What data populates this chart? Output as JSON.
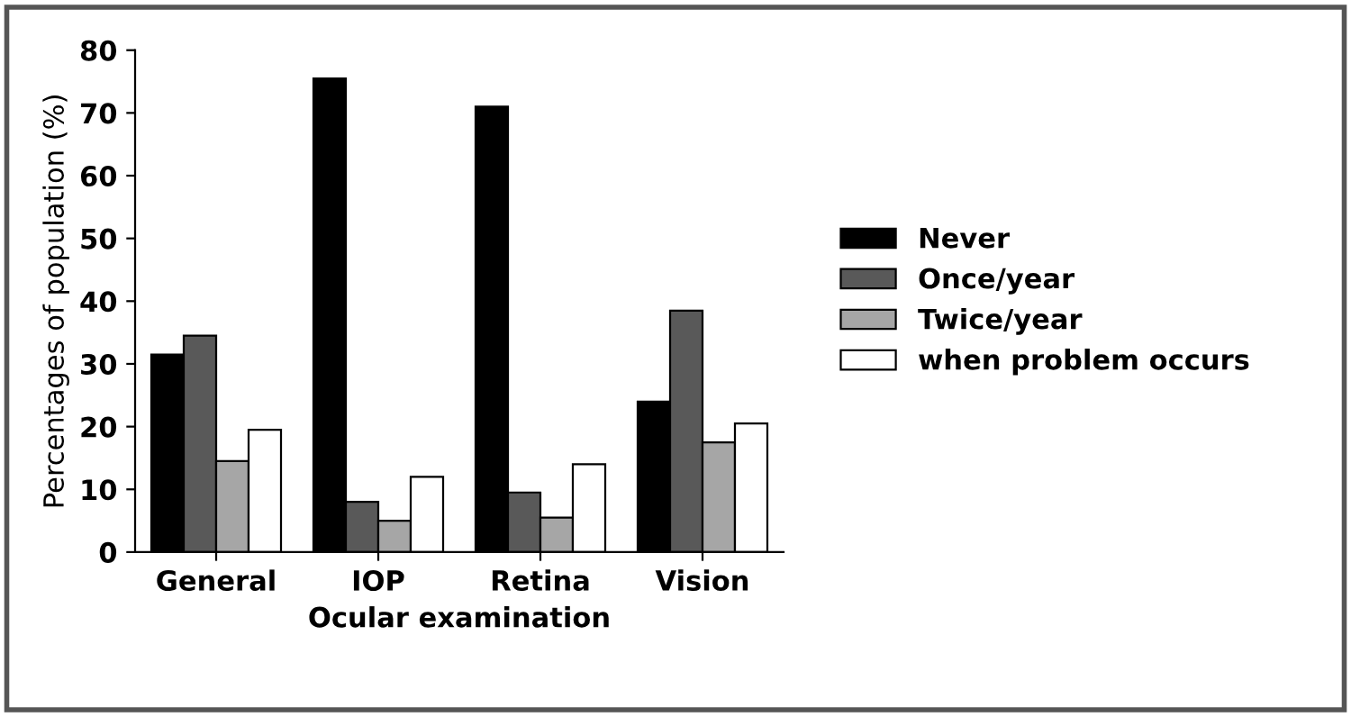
{
  "chart_data": {
    "type": "bar",
    "xlabel": "Ocular examination",
    "ylabel": "Percentages of population (%)",
    "categories": [
      "General",
      "IOP",
      "Retina",
      "Vision"
    ],
    "series": [
      {
        "name": "Never",
        "color": "#000000",
        "values": [
          31.5,
          75.5,
          71,
          24
        ]
      },
      {
        "name": "Once/year",
        "color": "#595959",
        "values": [
          34.5,
          8,
          9.5,
          38.5
        ]
      },
      {
        "name": "Twice/year",
        "color": "#a6a6a6",
        "values": [
          14.5,
          5,
          5.5,
          17.5
        ]
      },
      {
        "name": "when problem occurs",
        "color": "#ffffff",
        "values": [
          19.5,
          12,
          14,
          20.5
        ]
      }
    ],
    "ylim": [
      0,
      80
    ],
    "yticks": [
      0,
      10,
      20,
      30,
      40,
      50,
      60,
      70,
      80
    ],
    "grid": false,
    "legend": "right"
  }
}
